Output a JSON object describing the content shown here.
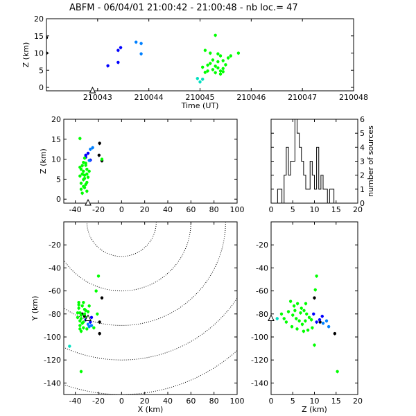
{
  "header": {
    "title": "ABFM - 06/04/01 21:00:42 - 21:00:48 - nb loc.=      47"
  },
  "colors": {
    "black": "#000000",
    "blue": "#0000ff",
    "azure": "#0080ff",
    "cyan": "#00e0c0",
    "green": "#00ff00"
  },
  "chart_data": [
    {
      "id": "time-height",
      "type": "scatter",
      "xlabel": "Time (UT)",
      "ylabel": "Z (km)",
      "xlim": [
        210042,
        210048
      ],
      "ylim": [
        -1,
        20
      ],
      "xticks": [
        210043,
        210044,
        210045,
        210046,
        210047,
        210048
      ],
      "xtick_labels": [
        "210043",
        "210044",
        "210045",
        "210046",
        "210047",
        "210048"
      ],
      "yticks": [
        0,
        5,
        10,
        15,
        20
      ],
      "ytick_labels": [
        "0",
        "5",
        "10",
        "15",
        "20"
      ],
      "points": [
        [
          210042.0,
          14.5,
          "black"
        ],
        [
          210042.0,
          10,
          "black"
        ],
        [
          210043.2,
          6.3,
          "blue"
        ],
        [
          210043.4,
          7.3,
          "blue"
        ],
        [
          210043.4,
          10.8,
          "blue"
        ],
        [
          210043.45,
          11.6,
          "blue"
        ],
        [
          210043.75,
          13.2,
          "azure"
        ],
        [
          210043.85,
          12.8,
          "azure"
        ],
        [
          210043.85,
          9.8,
          "azure"
        ],
        [
          210045.3,
          15.2,
          "green"
        ],
        [
          210045.1,
          10.8,
          "green"
        ],
        [
          210045.2,
          10.0,
          "green"
        ],
        [
          210045.35,
          9.8,
          "green"
        ],
        [
          210045.4,
          9.2,
          "green"
        ],
        [
          210045.55,
          8.6,
          "green"
        ],
        [
          210045.75,
          10.0,
          "green"
        ],
        [
          210045.25,
          8.0,
          "green"
        ],
        [
          210045.35,
          7.5,
          "green"
        ],
        [
          210045.2,
          7.0,
          "green"
        ],
        [
          210045.15,
          6.5,
          "green"
        ],
        [
          210045.3,
          6.2,
          "green"
        ],
        [
          210045.35,
          5.7,
          "green"
        ],
        [
          210045.25,
          5.2,
          "green"
        ],
        [
          210045.4,
          4.8,
          "green"
        ],
        [
          210045.3,
          4.3,
          "green"
        ],
        [
          210045.15,
          4.8,
          "green"
        ],
        [
          210045.1,
          4.4,
          "green"
        ],
        [
          210045.5,
          6.6,
          "green"
        ],
        [
          210045.45,
          5.5,
          "green"
        ],
        [
          210045.05,
          5.9,
          "green"
        ],
        [
          210045.6,
          9.2,
          "green"
        ],
        [
          210045.4,
          3.9,
          "green"
        ],
        [
          210045.0,
          1.6,
          "cyan"
        ],
        [
          210044.95,
          2.6,
          "cyan"
        ],
        [
          210045.05,
          2.4,
          "cyan"
        ],
        [
          210045.45,
          4.6,
          "green"
        ],
        [
          210045.45,
          7.8,
          "green"
        ]
      ],
      "markers": [
        [
          210042.9,
          -1,
          "triangle"
        ]
      ]
    },
    {
      "id": "xz",
      "type": "scatter",
      "xlabel": "",
      "ylabel": "Z (km)",
      "xlim": [
        -50,
        100
      ],
      "ylim": [
        -1,
        20
      ],
      "xticks": [
        -40,
        -20,
        0,
        20,
        40,
        60,
        80,
        100
      ],
      "xtick_labels": [
        "-40",
        "-20",
        "0",
        "20",
        "40",
        "60",
        "80",
        "100"
      ],
      "yticks": [
        0,
        5,
        10,
        15,
        20
      ],
      "ytick_labels": [
        "0",
        "5",
        "10",
        "15",
        "20"
      ],
      "points": [
        [
          -19,
          14,
          "black"
        ],
        [
          -19.5,
          11,
          "black"
        ],
        [
          -17,
          9.6,
          "black"
        ],
        [
          -29,
          11.5,
          "blue"
        ],
        [
          -31,
          11,
          "blue"
        ],
        [
          -31,
          10.5,
          "blue"
        ],
        [
          -27,
          9.8,
          "blue"
        ],
        [
          -27,
          12.5,
          "azure"
        ],
        [
          -25,
          12.9,
          "azure"
        ],
        [
          -28,
          9.7,
          "azure"
        ],
        [
          -36,
          15.2,
          "green"
        ],
        [
          -32,
          10.3,
          "green"
        ],
        [
          -33,
          9.2,
          "green"
        ],
        [
          -35,
          7.5,
          "green"
        ],
        [
          -34,
          6.3,
          "green"
        ],
        [
          -31,
          8.5,
          "green"
        ],
        [
          -30,
          7.5,
          "green"
        ],
        [
          -32,
          6.0,
          "green"
        ],
        [
          -33,
          4.9,
          "green"
        ],
        [
          -31,
          3.7,
          "green"
        ],
        [
          -35,
          2.5,
          "green"
        ],
        [
          -34,
          1.5,
          "green"
        ],
        [
          -36,
          8.0,
          "green"
        ],
        [
          -29,
          5.5,
          "green"
        ],
        [
          -30,
          4.2,
          "green"
        ],
        [
          -32,
          2.9,
          "green"
        ],
        [
          -35,
          4.0,
          "green"
        ],
        [
          -33,
          7.0,
          "green"
        ],
        [
          -30,
          6.3,
          "green"
        ],
        [
          -32,
          5.2,
          "green"
        ],
        [
          -28,
          7.0,
          "green"
        ],
        [
          -34,
          8.4,
          "green"
        ],
        [
          -31,
          9.0,
          "green"
        ],
        [
          -36,
          5.8,
          "green"
        ],
        [
          -33,
          3.2,
          "green"
        ],
        [
          -30,
          2.0,
          "green"
        ],
        [
          -17,
          10.0,
          "green"
        ]
      ],
      "markers": [
        [
          -29,
          -1,
          "triangle"
        ]
      ]
    },
    {
      "id": "histogram",
      "type": "bar",
      "xlabel": "",
      "ylabel": "number of sources",
      "xlim": [
        0,
        20
      ],
      "ylim": [
        0,
        6
      ],
      "xticks": [
        0,
        5,
        10,
        15,
        20
      ],
      "xtick_labels": [
        "0",
        "5",
        "10",
        "15",
        "20"
      ],
      "yticks": [
        0,
        1,
        2,
        3,
        4,
        5,
        6
      ],
      "ytick_labels": [
        "0",
        "1",
        "2",
        "3",
        "4",
        "5",
        "6"
      ],
      "bin_width": 0.5,
      "bin_start": 1.5,
      "counts": [
        1,
        1,
        0,
        2,
        4,
        2,
        3,
        3,
        6,
        5,
        4,
        3,
        2,
        1,
        1,
        3,
        2,
        1,
        4,
        1,
        2,
        1,
        1,
        0,
        1,
        1,
        0
      ]
    },
    {
      "id": "xy",
      "type": "scatter",
      "xlabel": "X (km)",
      "ylabel": "Y (km)",
      "xlim": [
        -50,
        100
      ],
      "ylim": [
        -150,
        0
      ],
      "xticks": [
        -40,
        -20,
        0,
        20,
        40,
        60,
        80,
        100
      ],
      "xtick_labels": [
        "-40",
        "-20",
        "0",
        "20",
        "40",
        "60",
        "80",
        "100"
      ],
      "yticks": [
        -140,
        -120,
        -100,
        -80,
        -60,
        -40,
        -20
      ],
      "ytick_labels": [
        "-140",
        "-120",
        "-100",
        "-80",
        "-60",
        "-40",
        "-20"
      ],
      "contour_center": [
        0,
        0
      ],
      "contour_radii": [
        30,
        60,
        90,
        120,
        150
      ],
      "points": [
        [
          -17,
          -66,
          "black"
        ],
        [
          -19,
          -87,
          "black"
        ],
        [
          -19,
          -97,
          "black"
        ],
        [
          -34,
          -80,
          "black"
        ],
        [
          -32,
          -82,
          "black"
        ],
        [
          -27,
          -87,
          "blue"
        ],
        [
          -31,
          -85,
          "blue"
        ],
        [
          -30,
          -84,
          "blue"
        ],
        [
          -26,
          -83,
          "blue"
        ],
        [
          -26,
          -90,
          "azure"
        ],
        [
          -28,
          -91,
          "azure"
        ],
        [
          -29,
          -89,
          "azure"
        ],
        [
          -20,
          -47,
          "green"
        ],
        [
          -22,
          -60,
          "green"
        ],
        [
          -34,
          -73,
          "green"
        ],
        [
          -37,
          -75,
          "green"
        ],
        [
          -36,
          -79,
          "green"
        ],
        [
          -35,
          -81,
          "green"
        ],
        [
          -38,
          -83,
          "green"
        ],
        [
          -36,
          -86,
          "green"
        ],
        [
          -34,
          -88,
          "green"
        ],
        [
          -36,
          -90,
          "green"
        ],
        [
          -33,
          -92,
          "green"
        ],
        [
          -31,
          -77,
          "green"
        ],
        [
          -32,
          -80,
          "green"
        ],
        [
          -30,
          -83,
          "green"
        ],
        [
          -29,
          -78,
          "green"
        ],
        [
          -33,
          -70,
          "green"
        ],
        [
          -37,
          -72,
          "green"
        ],
        [
          -35,
          -95,
          "green"
        ],
        [
          -30,
          -93,
          "green"
        ],
        [
          -24,
          -92,
          "green"
        ],
        [
          -21,
          -80,
          "green"
        ],
        [
          -28,
          -73,
          "green"
        ],
        [
          -37,
          -70,
          "green"
        ],
        [
          -32,
          -76,
          "green"
        ],
        [
          -38,
          -79,
          "green"
        ],
        [
          -35,
          -84,
          "green"
        ],
        [
          -33,
          -87,
          "green"
        ],
        [
          -36,
          -93,
          "green"
        ],
        [
          -45,
          -108,
          "cyan"
        ],
        [
          -35,
          -130,
          "green"
        ]
      ],
      "markers": [
        [
          -29,
          -84,
          "triangle"
        ]
      ]
    },
    {
      "id": "zy",
      "type": "scatter",
      "xlabel": "Z (km)",
      "ylabel": "",
      "xlim": [
        0,
        20
      ],
      "ylim": [
        -150,
        0
      ],
      "xticks": [
        0,
        5,
        10,
        15,
        20
      ],
      "xtick_labels": [
        "0",
        "5",
        "10",
        "15",
        "20"
      ],
      "yticks": [
        -140,
        -120,
        -100,
        -80,
        -60,
        -40,
        -20
      ],
      "ytick_labels": [
        "-140",
        "-120",
        "-100",
        "-80",
        "-60",
        "-40",
        "-20"
      ],
      "points": [
        [
          10,
          -66,
          "black"
        ],
        [
          14.7,
          -97,
          "black"
        ],
        [
          11.3,
          -87,
          "black"
        ],
        [
          11.2,
          -85,
          "blue"
        ],
        [
          10.5,
          -87,
          "blue"
        ],
        [
          9.8,
          -80,
          "blue"
        ],
        [
          11.8,
          -82,
          "blue"
        ],
        [
          12.8,
          -86,
          "azure"
        ],
        [
          13.3,
          -91,
          "azure"
        ],
        [
          12.0,
          -88,
          "azure"
        ],
        [
          10.5,
          -47,
          "green"
        ],
        [
          10.2,
          -59,
          "green"
        ],
        [
          4.5,
          -69,
          "green"
        ],
        [
          5.3,
          -73,
          "green"
        ],
        [
          6.1,
          -71,
          "green"
        ],
        [
          7.0,
          -75,
          "green"
        ],
        [
          7.6,
          -77,
          "green"
        ],
        [
          8.2,
          -80,
          "green"
        ],
        [
          8.8,
          -83,
          "green"
        ],
        [
          9.3,
          -85,
          "green"
        ],
        [
          3.0,
          -84,
          "green"
        ],
        [
          2.4,
          -80,
          "green"
        ],
        [
          4.0,
          -78,
          "green"
        ],
        [
          5.0,
          -81,
          "green"
        ],
        [
          5.8,
          -84,
          "green"
        ],
        [
          6.5,
          -86,
          "green"
        ],
        [
          7.2,
          -89,
          "green"
        ],
        [
          4.8,
          -91,
          "green"
        ],
        [
          6.0,
          -93,
          "green"
        ],
        [
          7.5,
          -95,
          "green"
        ],
        [
          8.5,
          -94,
          "green"
        ],
        [
          9.5,
          -92,
          "green"
        ],
        [
          5.5,
          -77,
          "green"
        ],
        [
          6.8,
          -79,
          "green"
        ],
        [
          3.5,
          -87,
          "green"
        ],
        [
          8.0,
          -71,
          "green"
        ],
        [
          7.9,
          -86,
          "green"
        ],
        [
          10.0,
          -107,
          "green"
        ],
        [
          15.3,
          -130,
          "green"
        ],
        [
          1.4,
          -84,
          "cyan"
        ]
      ],
      "markers": [
        [
          0,
          -84,
          "triangle"
        ]
      ]
    }
  ]
}
